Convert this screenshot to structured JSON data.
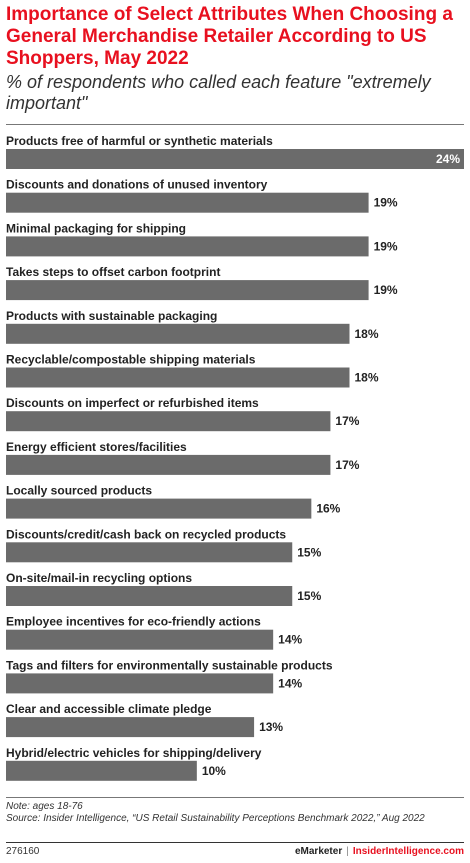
{
  "title": "Importance of Select Attributes When Choosing a General Merchandise Retailer According to US Shoppers, May 2022",
  "subtitle": "% of respondents who called each feature \"extremely important\"",
  "chart_data": {
    "type": "bar",
    "orientation": "horizontal",
    "categories": [
      "Products free of harmful or synthetic materials",
      "Discounts and donations of unused inventory",
      "Minimal packaging for shipping",
      "Takes steps to offset carbon footprint",
      "Products with sustainable packaging",
      "Recyclable/compostable shipping materials",
      "Discounts on imperfect or refurbished items",
      "Energy efficient stores/facilities",
      "Locally sourced products",
      "Discounts/credit/cash back on recycled products",
      "On-site/mail-in recycling options",
      "Employee incentives for eco-friendly actions",
      "Tags and filters for environmentally sustainable products",
      "Clear and accessible climate pledge",
      "Hybrid/electric vehicles for shipping/delivery"
    ],
    "values": [
      24,
      19,
      19,
      19,
      18,
      18,
      17,
      17,
      16,
      15,
      15,
      14,
      14,
      13,
      10
    ],
    "value_labels": [
      "24%",
      "19%",
      "19%",
      "19%",
      "18%",
      "18%",
      "17%",
      "17%",
      "16%",
      "15%",
      "15%",
      "14%",
      "14%",
      "13%",
      "10%"
    ],
    "xlim": [
      0,
      24
    ],
    "grid": false,
    "bar_color": "#6b6b6b"
  },
  "note": "Note: ages 18-76",
  "source": "Source: Insider Intelligence, “US Retail Sustainability Perceptions Benchmark 2022,” Aug 2022",
  "chart_id": "276160",
  "brand": {
    "emarketer": "eMarketer",
    "separator": "|",
    "insider": "InsiderIntelligence.com"
  },
  "colors": {
    "title": "#e8101f",
    "bar": "#6b6b6b",
    "text": "#222222"
  }
}
